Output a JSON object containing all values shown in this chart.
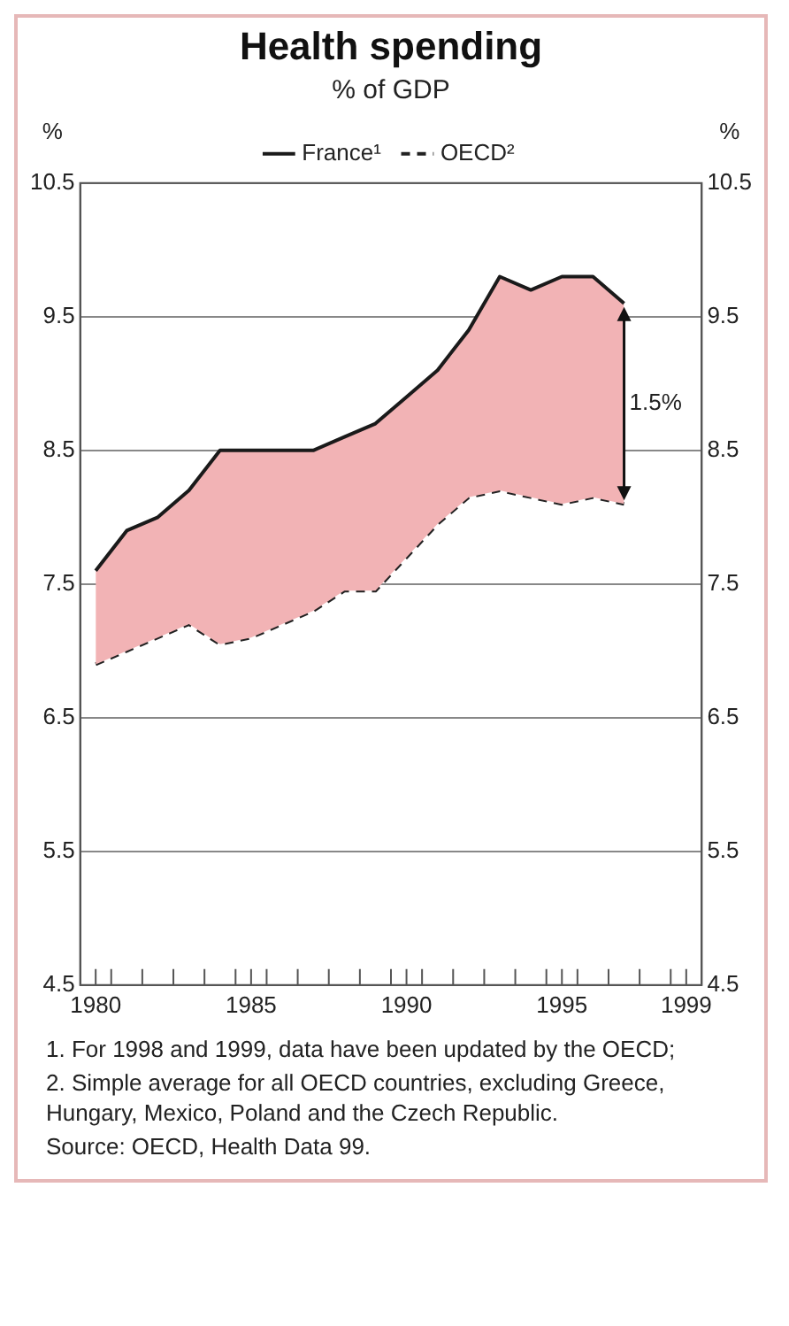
{
  "chart_data": {
    "type": "line",
    "title": "Health spending",
    "subtitle": "% of GDP",
    "ylabel": "%",
    "y2label": "%",
    "x": [
      1980,
      1981,
      1982,
      1983,
      1984,
      1985,
      1986,
      1987,
      1988,
      1989,
      1990,
      1991,
      1992,
      1993,
      1994,
      1995,
      1996,
      1997
    ],
    "series": [
      {
        "name": "France¹",
        "type": "area",
        "color": "#f2b3b5",
        "values": [
          7.6,
          7.9,
          8.0,
          8.2,
          8.5,
          8.5,
          8.5,
          8.5,
          8.6,
          8.7,
          8.9,
          9.1,
          9.4,
          9.8,
          9.7,
          9.8,
          9.8,
          9.6
        ]
      },
      {
        "name": "OECD²",
        "color": "#222222",
        "line_style": "dashed",
        "values": [
          6.9,
          7.0,
          7.1,
          7.2,
          7.05,
          7.1,
          7.2,
          7.3,
          7.45,
          7.45,
          7.7,
          7.95,
          8.15,
          8.2,
          8.15,
          8.1,
          8.15,
          8.1
        ]
      }
    ],
    "xlim": [
      1979.5,
      1999.5
    ],
    "xticks": [
      1980,
      {
        "value": 1980.5,
        "label": null
      },
      {
        "value": 1981.5,
        "label": null
      },
      {
        "value": 1982.5,
        "label": null
      },
      {
        "value": 1983.5,
        "label": null
      },
      {
        "value": 1984.5,
        "label": null
      },
      1985,
      {
        "value": 1985.5,
        "label": null
      },
      {
        "value": 1986.5,
        "label": null
      },
      {
        "value": 1987.5,
        "label": null
      },
      {
        "value": 1988.5,
        "label": null
      },
      {
        "value": 1989.5,
        "label": null
      },
      1990,
      {
        "value": 1990.5,
        "label": null
      },
      {
        "value": 1991.5,
        "label": null
      },
      {
        "value": 1992.5,
        "label": null
      },
      {
        "value": 1993.5,
        "label": null
      },
      {
        "value": 1994.5,
        "label": null
      },
      1995,
      {
        "value": 1995.5,
        "label": null
      },
      {
        "value": 1996.5,
        "label": null
      },
      {
        "value": 1997.5,
        "label": null
      },
      {
        "value": 1998.5,
        "label": null
      },
      1999
    ],
    "ylim": [
      4.5,
      10.5
    ],
    "yticks": [
      4.5,
      5.5,
      6.5,
      7.5,
      8.5,
      9.5,
      10.5
    ],
    "y2lim": [
      4.5,
      10.5
    ],
    "y2ticks": [
      4.5,
      5.5,
      6.5,
      7.5,
      8.5,
      9.5,
      10.5
    ],
    "grid": "y",
    "legend": "top",
    "marker": "none",
    "annotations": [
      {
        "text": "1.5%",
        "x": 1997,
        "y": 8.85
      },
      "1. For 1998 and 1999, data have been updated by the OECD;",
      "2. Simple average for all OECD countries, excluding Greece, Hungary, Mexico, Poland and the Czech Republic.",
      "Source: OECD, Health Data 99."
    ]
  }
}
